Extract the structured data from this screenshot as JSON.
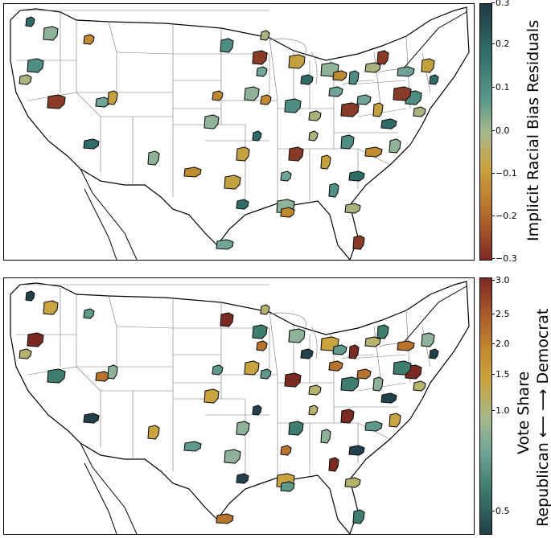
{
  "top_map": {
    "colorbar_label": "Implicit Racial Bias Residuals",
    "ticks": [
      "0.3",
      "0.2",
      "0.1",
      "0.0",
      "−0.1",
      "−0.2",
      "−0.3"
    ],
    "scale": {
      "min": -0.3,
      "max": 0.3
    },
    "colors": {
      "high": "#1f3a44",
      "mid": "#a7b88d",
      "low": "#7d2a22"
    }
  },
  "bottom_map": {
    "colorbar_label_line1": "Vote Share",
    "colorbar_label_line2": "Republican ⟵ ⟶ Democrat",
    "ticks": [
      "3.0",
      "2.5",
      "2.0",
      "1.5",
      "1.0",
      "0.5"
    ],
    "scale": {
      "min": 0.4,
      "max": 3.0,
      "type": "log"
    },
    "colors": {
      "high": "#7a2a20",
      "mid": "#a5b88c",
      "low": "#22414a"
    }
  }
}
